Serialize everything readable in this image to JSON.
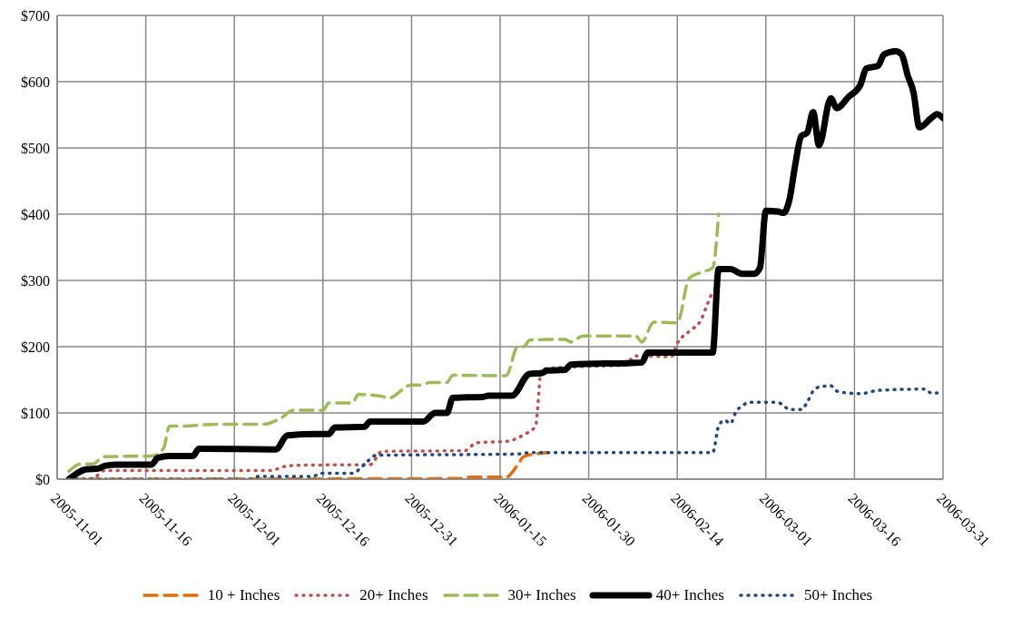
{
  "chart_data": {
    "type": "line",
    "xlim": [
      "2005-11-01",
      "2006-03-31"
    ],
    "xticks": [
      "2005-11-01",
      "2005-11-16",
      "2005-12-01",
      "2005-12-16",
      "2005-12-31",
      "2006-01-15",
      "2006-01-30",
      "2006-02-14",
      "2006-03-01",
      "2006-03-16",
      "2006-03-31"
    ],
    "ylim": [
      0,
      700
    ],
    "yticks": [
      {
        "value": 0,
        "label": "$0"
      },
      {
        "value": 100,
        "label": "$100"
      },
      {
        "value": 200,
        "label": "$200"
      },
      {
        "value": 300,
        "label": "$300"
      },
      {
        "value": 400,
        "label": "$400"
      },
      {
        "value": 500,
        "label": "$500"
      },
      {
        "value": 600,
        "label": "$600"
      },
      {
        "value": 700,
        "label": "$700"
      }
    ],
    "grid": true,
    "legend": "bottom",
    "marker": "none",
    "series": [
      {
        "name": "10 + Inches",
        "color": "#e46c0a",
        "line_style": "dashed",
        "x": [
          "2005-11-03",
          "2006-01-08",
          "2006-01-10",
          "2006-01-16",
          "2006-01-18",
          "2006-01-19",
          "2006-01-21",
          "2006-01-23"
        ],
        "values": [
          0,
          1,
          3,
          3,
          22,
          34,
          38,
          40
        ]
      },
      {
        "name": "20+ Inches",
        "color": "#c0504d",
        "line_style": "dotted",
        "x": [
          "2005-11-03",
          "2005-11-07",
          "2005-11-09",
          "2005-12-07",
          "2005-12-10",
          "2005-12-12",
          "2005-12-24",
          "2005-12-26",
          "2006-01-09",
          "2006-01-11",
          "2006-01-16",
          "2006-01-19",
          "2006-01-21",
          "2006-01-22",
          "2006-01-29",
          "2006-02-05",
          "2006-02-07",
          "2006-02-13",
          "2006-02-14",
          "2006-02-16",
          "2006-02-18",
          "2006-02-19",
          "2006-02-20"
        ],
        "values": [
          0,
          1,
          13,
          13,
          20,
          21,
          22,
          42,
          43,
          55,
          57,
          67,
          80,
          166,
          170,
          172,
          186,
          185,
          205,
          223,
          240,
          262,
          283
        ]
      },
      {
        "name": "30+ Inches",
        "color": "#9bbb59",
        "line_style": "dashed",
        "x": [
          "2005-11-03",
          "2005-11-05",
          "2005-11-07",
          "2005-11-09",
          "2005-11-17",
          "2005-11-19",
          "2005-11-20",
          "2005-11-22",
          "2005-11-28",
          "2005-12-06",
          "2005-12-09",
          "2005-12-11",
          "2005-12-16",
          "2005-12-17",
          "2005-12-21",
          "2005-12-22",
          "2005-12-26",
          "2005-12-27",
          "2005-12-31",
          "2006-01-02",
          "2006-01-03",
          "2006-01-06",
          "2006-01-07",
          "2006-01-16",
          "2006-01-18",
          "2006-01-19",
          "2006-01-20",
          "2006-01-26",
          "2006-01-27",
          "2006-01-29",
          "2006-02-07",
          "2006-02-08",
          "2006-02-10",
          "2006-02-14",
          "2006-02-16",
          "2006-02-18",
          "2006-02-20",
          "2006-02-21"
        ],
        "values": [
          12,
          23,
          23,
          34,
          35,
          46,
          80,
          80,
          83,
          83,
          93,
          104,
          104,
          115,
          115,
          128,
          125,
          122,
          142,
          142,
          146,
          146,
          157,
          156,
          200,
          200,
          210,
          211,
          207,
          216,
          216,
          207,
          237,
          236,
          303,
          312,
          319,
          400
        ]
      },
      {
        "name": "40+ Inches",
        "color": "#000000",
        "line_style": "solid",
        "x": [
          "2005-11-03",
          "2005-11-06",
          "2005-11-08",
          "2005-11-09",
          "2005-11-11",
          "2005-11-17",
          "2005-11-18",
          "2005-11-20",
          "2005-11-24",
          "2005-11-25",
          "2005-12-08",
          "2005-12-10",
          "2005-12-15",
          "2005-12-17",
          "2005-12-18",
          "2005-12-23",
          "2005-12-24",
          "2006-01-02",
          "2006-01-04",
          "2006-01-06",
          "2006-01-07",
          "2006-01-12",
          "2006-01-13",
          "2006-01-17",
          "2006-01-20",
          "2006-01-22",
          "2006-01-23",
          "2006-01-26",
          "2006-01-27",
          "2006-02-08",
          "2006-02-09",
          "2006-02-20",
          "2006-02-21",
          "2006-02-23",
          "2006-02-25",
          "2006-02-27",
          "2006-02-28",
          "2006-03-01",
          "2006-03-03",
          "2006-03-04",
          "2006-03-05",
          "2006-03-06",
          "2006-03-07",
          "2006-03-08",
          "2006-03-09",
          "2006-03-10",
          "2006-03-12",
          "2006-03-13",
          "2006-03-15",
          "2006-03-17",
          "2006-03-18",
          "2006-03-20",
          "2006-03-21",
          "2006-03-23",
          "2006-03-24",
          "2006-03-25",
          "2006-03-26",
          "2006-03-27",
          "2006-03-29",
          "2006-03-30",
          "2006-03-31"
        ],
        "values": [
          0,
          15,
          16,
          20,
          22,
          22,
          32,
          35,
          35,
          46,
          45,
          66,
          68,
          68,
          78,
          79,
          87,
          87,
          100,
          100,
          123,
          124,
          126,
          126,
          159,
          160,
          164,
          165,
          173,
          176,
          191,
          191,
          317,
          317,
          310,
          310,
          319,
          405,
          404,
          402,
          422,
          476,
          518,
          523,
          554,
          504,
          575,
          560,
          577,
          595,
          620,
          624,
          641,
          646,
          641,
          610,
          584,
          531,
          545,
          551,
          545
        ]
      },
      {
        "name": "50+ Inches",
        "color": "#1f497d",
        "line_style": "dotted",
        "x": [
          "2005-11-03",
          "2005-12-04",
          "2005-12-05",
          "2005-12-14",
          "2005-12-16",
          "2005-12-21",
          "2005-12-23",
          "2005-12-25",
          "2006-01-18",
          "2006-01-20",
          "2006-02-20",
          "2006-02-21",
          "2006-02-22",
          "2006-02-23",
          "2006-02-24",
          "2006-02-25",
          "2006-02-26",
          "2006-03-03",
          "2006-03-04",
          "2006-03-05",
          "2006-03-07",
          "2006-03-08",
          "2006-03-09",
          "2006-03-10",
          "2006-03-12",
          "2006-03-13",
          "2006-03-15",
          "2006-03-17",
          "2006-03-20",
          "2006-03-28",
          "2006-03-29",
          "2006-03-31"
        ],
        "values": [
          0,
          0,
          4,
          4,
          9,
          9,
          22,
          36,
          38,
          40,
          40,
          80,
          89,
          84,
          103,
          110,
          116,
          116,
          111,
          105,
          105,
          116,
          133,
          139,
          141,
          133,
          130,
          129,
          134,
          136,
          130,
          130
        ]
      }
    ]
  }
}
